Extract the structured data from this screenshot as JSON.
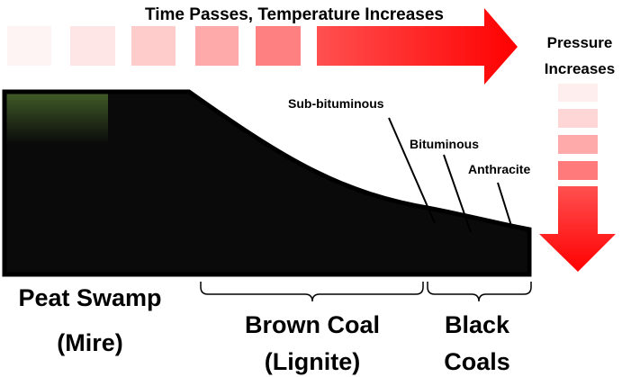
{
  "title": "Time Passes, Temperature Increases",
  "pressure": [
    "Pressure",
    "Increases"
  ],
  "coal_ranks": {
    "sub_bituminous": "Sub-bituminous",
    "bituminous": "Bituminous",
    "anthracite": "Anthracite"
  },
  "stages": {
    "peat": [
      "Peat Swamp",
      "(Mire)"
    ],
    "brown": [
      "Brown Coal",
      "(Lignite)"
    ],
    "black": [
      "Black",
      "Coals"
    ]
  },
  "colors": {
    "arrow": "#ff0000",
    "outline": "#000000"
  }
}
